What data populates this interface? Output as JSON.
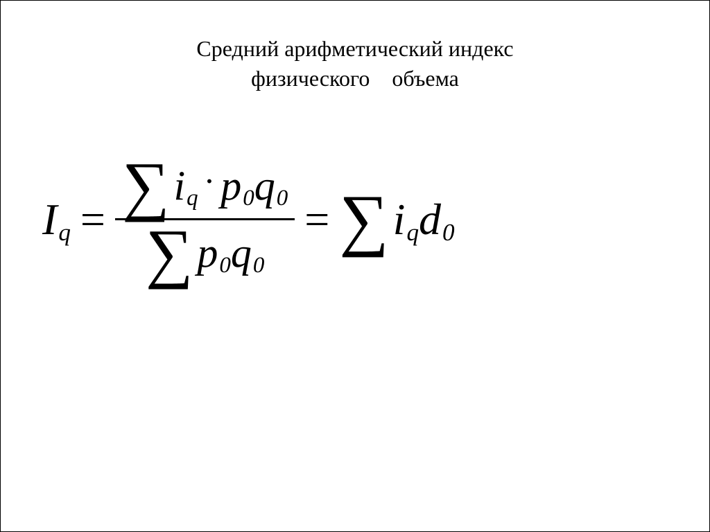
{
  "title": {
    "line1": "Средний арифметический индекс",
    "line2": "физического объема"
  },
  "formula": {
    "lhs": {
      "symbol": "I",
      "subscript": "q"
    },
    "eq1": "=",
    "numerator": {
      "sigma": "∑",
      "t1": {
        "sym": "i",
        "sub": "q"
      },
      "dot": "·",
      "t2": {
        "sym": "p",
        "sub": "0"
      },
      "t3": {
        "sym": "q",
        "sub": "0"
      }
    },
    "denominator": {
      "sigma": "∑",
      "t2": {
        "sym": "p",
        "sub": "0"
      },
      "t3": {
        "sym": "q",
        "sub": "0"
      }
    },
    "eq2": "=",
    "rhs": {
      "sigma": "∑",
      "t1": {
        "sym": "i",
        "sub": "q"
      },
      "t2": {
        "sym": "d",
        "sub": "0"
      }
    }
  },
  "style": {
    "text_color": "#000000",
    "background": "#ffffff",
    "title_fontsize": 32,
    "formula_base_fontsize": 64,
    "sigma_fontsize": 96,
    "font_family": "Times New Roman"
  }
}
